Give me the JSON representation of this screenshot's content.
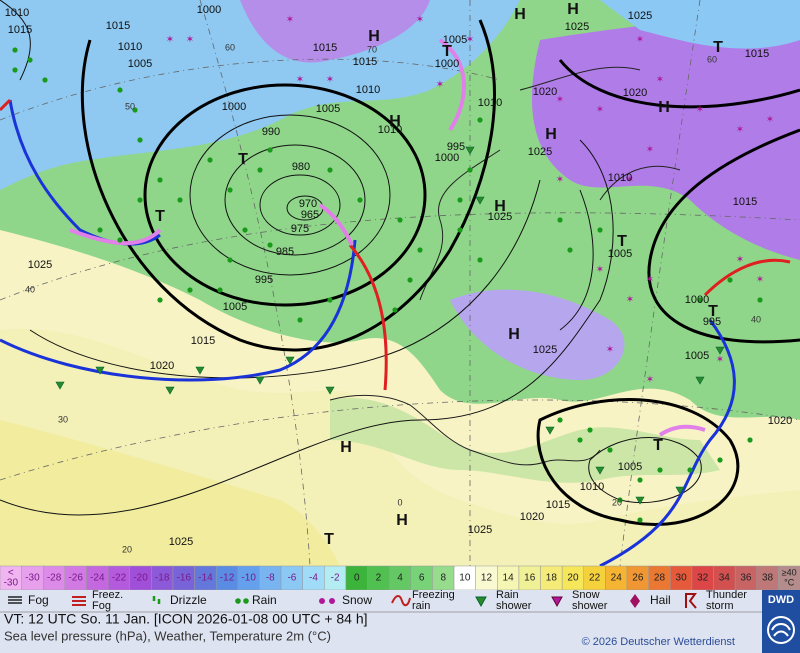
{
  "map": {
    "pressure_labels": [
      1010,
      1015,
      1010,
      1005,
      1000,
      1015,
      1015,
      1015,
      1010,
      1010,
      1005,
      1000,
      1010,
      1020,
      1020,
      1025,
      1025,
      1015,
      1025,
      1010,
      1015,
      1005,
      1000,
      995,
      1005,
      1025,
      1020,
      1000,
      1005,
      990,
      980,
      970,
      965,
      975,
      985,
      995,
      1005,
      1015,
      1020,
      1025,
      1000,
      995,
      1025,
      1005,
      1010,
      1015,
      1020,
      1025,
      1025
    ],
    "temperature_labels": [
      60,
      50,
      40,
      30,
      20,
      70,
      60,
      40,
      0,
      20
    ],
    "highs": [
      "H",
      "H",
      "H",
      "H",
      "H",
      "H",
      "H",
      "H",
      "H",
      "H"
    ],
    "lows": [
      "T",
      "T",
      "T",
      "T",
      "T",
      "T",
      "T",
      "T"
    ]
  },
  "temperature_scale": {
    "low_end": {
      "top": "<",
      "bottom": "-30"
    },
    "values": [
      -30,
      -28,
      -26,
      -24,
      -22,
      -20,
      -18,
      -16,
      -14,
      -12,
      -10,
      -8,
      -6,
      -4,
      -2,
      0,
      2,
      4,
      6,
      8,
      10,
      12,
      14,
      16,
      18,
      20,
      22,
      24,
      26,
      28,
      30,
      32,
      34,
      36,
      38
    ],
    "high_end": {
      "top": "≥40",
      "bottom": "°C"
    },
    "colors": [
      "#f0b4f0",
      "#e6a0ec",
      "#dc8ce8",
      "#d27ae4",
      "#c468e0",
      "#b45adc",
      "#a050d8",
      "#8c5ad8",
      "#7864d8",
      "#6478dc",
      "#5a8ce4",
      "#64a0ec",
      "#78b4f0",
      "#8cc8f4",
      "#a0dcf8",
      "#b4ecf4",
      "#3cb43c",
      "#50c050",
      "#64c864",
      "#78d278",
      "#96dc8c",
      "#ffffff",
      "#fafad2",
      "#f5f5b4",
      "#f0f096",
      "#f5eb78",
      "#f5e65a",
      "#f5d23c",
      "#f5b432",
      "#f09632",
      "#eb7832",
      "#e65a3c",
      "#dc4646",
      "#d25050",
      "#c86464",
      "#be7878",
      "#b48c8c"
    ]
  },
  "weather_legend": [
    {
      "lines": [
        "Fog"
      ]
    },
    {
      "lines": [
        "Freez.",
        "Fog"
      ]
    },
    {
      "lines": [
        "Drizzle"
      ]
    },
    {
      "lines": [
        "Rain"
      ]
    },
    {
      "lines": [
        "Snow"
      ]
    },
    {
      "lines": [
        "Freezing",
        "rain"
      ]
    },
    {
      "lines": [
        "Rain",
        "shower"
      ]
    },
    {
      "lines": [
        "Snow",
        "shower"
      ]
    },
    {
      "lines": [
        "Hail"
      ]
    },
    {
      "lines": [
        "Thunder",
        "storm"
      ]
    }
  ],
  "footer": {
    "valid_time": "VT: 12 UTC So.  11 Jan. [ICON 2026-01-08  00 UTC + 84 h]",
    "description": "Sea level pressure (hPa), Weather, Temperature 2m (°C)",
    "copyright": "© 2026 Deutscher Wetterdienst",
    "logo": "DWD"
  }
}
